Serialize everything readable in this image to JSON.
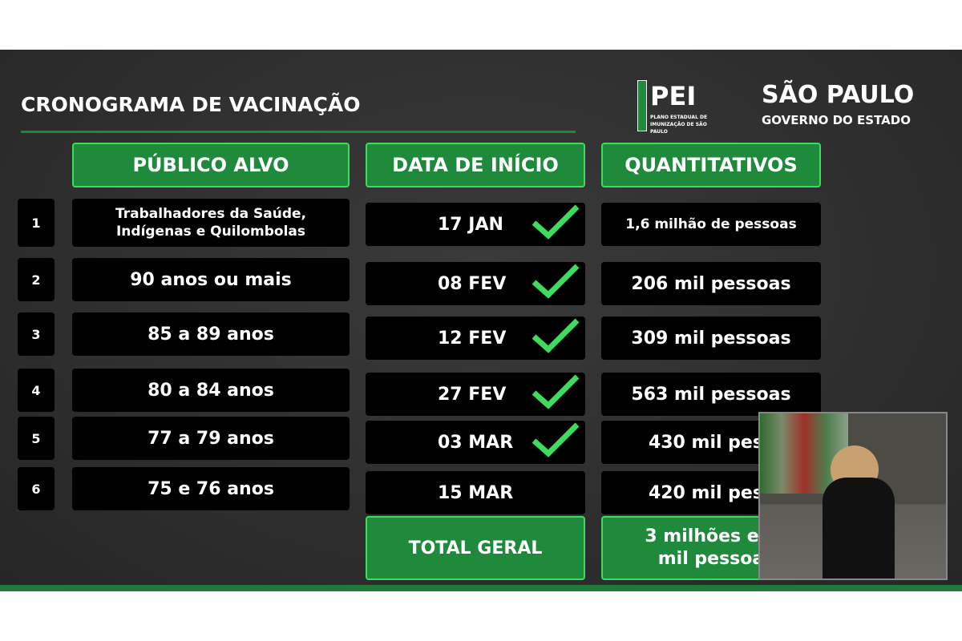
{
  "title": "CRONOGRAMA DE VACINAÇÃO",
  "logos": {
    "pei": "PEI",
    "pei_sub": "PLANO ESTADUAL DE IMUNIZAÇÃO DE SÃO PAULO",
    "sp": "SÃO PAULO",
    "sp_sub": "GOVERNO DO ESTADO"
  },
  "headers": [
    "PÚBLICO ALVO",
    "DATA DE INÍCIO",
    "QUANTITATIVOS"
  ],
  "rows": [
    {
      "n": "1",
      "publico": "Trabalhadores da Saúde, Indígenas e Quilombolas",
      "data": "17 JAN",
      "qtd": "1,6 milhão de pessoas",
      "done": true
    },
    {
      "n": "2",
      "publico": "90 anos ou mais",
      "data": "08 FEV",
      "qtd": "206 mil pessoas",
      "done": true
    },
    {
      "n": "3",
      "publico": "85 a 89 anos",
      "data": "12 FEV",
      "qtd": "309 mil pessoas",
      "done": true
    },
    {
      "n": "4",
      "publico": "80 a 84 anos",
      "data": "27 FEV",
      "qtd": "563 mil pessoas",
      "done": true
    },
    {
      "n": "5",
      "publico": "77 a 79 anos",
      "data": "03 MAR",
      "qtd": "430 mil pess",
      "done": true
    },
    {
      "n": "6",
      "publico": "75 e 76 anos",
      "data": "15 MAR",
      "qtd": "420 mil pess",
      "done": false
    }
  ],
  "total": {
    "label": "TOTAL GERAL",
    "line1": "3 milhões e 5",
    "line2": "mil pessoa"
  },
  "colors": {
    "green": "#1f8a3b",
    "check": "#3ddc5a"
  }
}
